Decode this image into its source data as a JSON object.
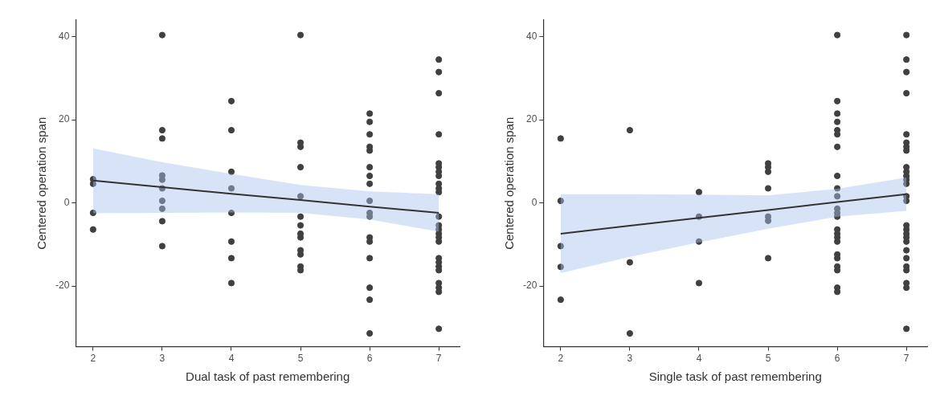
{
  "chart_data": [
    {
      "type": "scatter",
      "xlabel": "Dual task of past remembering",
      "ylabel": "Centered operation span",
      "xlim": [
        1.75,
        7.3
      ],
      "ylim": [
        -34.6,
        44
      ],
      "xticks": [
        2,
        3,
        4,
        5,
        6,
        7
      ],
      "yticks": [
        -20,
        0,
        20,
        40
      ],
      "grid": false,
      "legend": false,
      "series": [
        {
          "marker": "circle",
          "color": "#404040",
          "x": [
            2,
            2,
            2,
            2,
            3,
            3,
            3,
            3,
            3,
            3,
            3,
            3,
            3,
            3,
            4,
            4,
            4,
            4,
            4,
            4,
            4,
            4,
            5,
            5,
            5,
            5,
            5,
            5,
            5,
            5,
            5,
            5,
            5,
            5,
            5,
            6,
            6,
            6,
            6,
            6,
            6,
            6,
            6,
            6,
            6,
            6,
            6,
            6,
            6,
            6,
            6,
            6,
            7,
            7,
            7,
            7,
            7,
            7,
            7,
            7,
            7,
            7,
            7,
            7,
            7,
            7,
            7,
            7,
            7,
            7,
            7,
            7,
            7,
            7,
            7,
            7,
            7
          ],
          "values": [
            5.7,
            4.6,
            -2.4,
            -6.4,
            40.4,
            17.5,
            15.5,
            6.6,
            5.6,
            3.5,
            0.5,
            -1.4,
            -4.4,
            -10.4,
            24.5,
            17.5,
            7.5,
            3.5,
            -2.4,
            -9.3,
            -13.3,
            -19.3,
            40.4,
            14.5,
            13.5,
            8.6,
            1.6,
            -3.3,
            -5.4,
            -7.4,
            -8.3,
            -11.4,
            -12.4,
            -15.3,
            -16.2,
            21.5,
            19.5,
            16.5,
            13.5,
            12.6,
            8.6,
            6.5,
            4.6,
            0.5,
            -2.4,
            -3.3,
            -8.3,
            -9.3,
            -13.3,
            -20.4,
            -23.3,
            -31.4,
            34.5,
            31.5,
            26.4,
            16.5,
            9.5,
            8.6,
            7.5,
            6.5,
            4.6,
            3.5,
            2.6,
            -3.3,
            -5.4,
            -6.4,
            -7.4,
            -8.3,
            -9.3,
            -13.3,
            -14.3,
            -15.3,
            -16.2,
            -19.3,
            -20.4,
            -21.4,
            -30.3
          ]
        },
        {
          "type": "line",
          "color": "#333333",
          "x": [
            2,
            3,
            4,
            5,
            6,
            7
          ],
          "values": [
            5.4,
            3.8,
            2.2,
            0.7,
            -0.9,
            -2.4
          ],
          "lower": [
            -2.5,
            -2.4,
            -2.3,
            -2.4,
            -4.0,
            -6.9
          ],
          "upper": [
            13.1,
            9.8,
            7.0,
            4.3,
            2.8,
            2.1
          ]
        }
      ]
    },
    {
      "type": "scatter",
      "xlabel": "Single task of past remembering",
      "ylabel": "Centered operation span",
      "xlim": [
        1.75,
        7.3
      ],
      "ylim": [
        -34.6,
        44
      ],
      "xticks": [
        2,
        3,
        4,
        5,
        6,
        7
      ],
      "yticks": [
        -20,
        0,
        20,
        40
      ],
      "grid": false,
      "legend": false,
      "series": [
        {
          "marker": "circle",
          "color": "#404040",
          "x": [
            2,
            2,
            2,
            2,
            2,
            3,
            3,
            3,
            4,
            4,
            4,
            4,
            5,
            5,
            5,
            5,
            5,
            5,
            5,
            6,
            6,
            6,
            6,
            6,
            6,
            6,
            6,
            6,
            6,
            6,
            6,
            6,
            6,
            6,
            6,
            6,
            6,
            6,
            6,
            6,
            6,
            6,
            7,
            7,
            7,
            7,
            7,
            7,
            7,
            7,
            7,
            7,
            7,
            7,
            7,
            7,
            7,
            7,
            7,
            7,
            7,
            7,
            7,
            7,
            7,
            7,
            7,
            7,
            7
          ],
          "values": [
            15.5,
            0.5,
            -10.4,
            -15.4,
            -23.3,
            17.5,
            -14.3,
            -31.4,
            2.6,
            -3.3,
            -9.3,
            -19.3,
            9.5,
            8.6,
            7.5,
            3.5,
            -3.3,
            -4.3,
            -13.3,
            40.4,
            24.5,
            21.5,
            19.5,
            17.5,
            16.5,
            13.5,
            6.5,
            3.5,
            1.6,
            -1.4,
            -2.4,
            -3.3,
            -6.4,
            -7.4,
            -8.3,
            -9.3,
            -12.4,
            -13.3,
            -15.3,
            -16.2,
            -20.4,
            -21.4,
            40.4,
            34.5,
            31.5,
            26.4,
            16.5,
            14.5,
            13.5,
            12.6,
            8.6,
            7.5,
            6.5,
            5.6,
            4.6,
            1.6,
            0.5,
            -5.4,
            -6.4,
            -7.4,
            -8.3,
            -9.3,
            -11.4,
            -13.3,
            -15.3,
            -16.2,
            -19.3,
            -20.4,
            -30.3
          ]
        },
        {
          "type": "line",
          "color": "#333333",
          "x": [
            2,
            3,
            4,
            5,
            6,
            7
          ],
          "values": [
            -7.4,
            -5.5,
            -3.6,
            -1.7,
            0.2,
            2.1
          ],
          "lower": [
            -16.9,
            -13.0,
            -9.5,
            -6.2,
            -3.3,
            -1.9
          ],
          "upper": [
            2.1,
            2.1,
            2.0,
            1.8,
            3.4,
            6.1
          ]
        }
      ]
    }
  ]
}
